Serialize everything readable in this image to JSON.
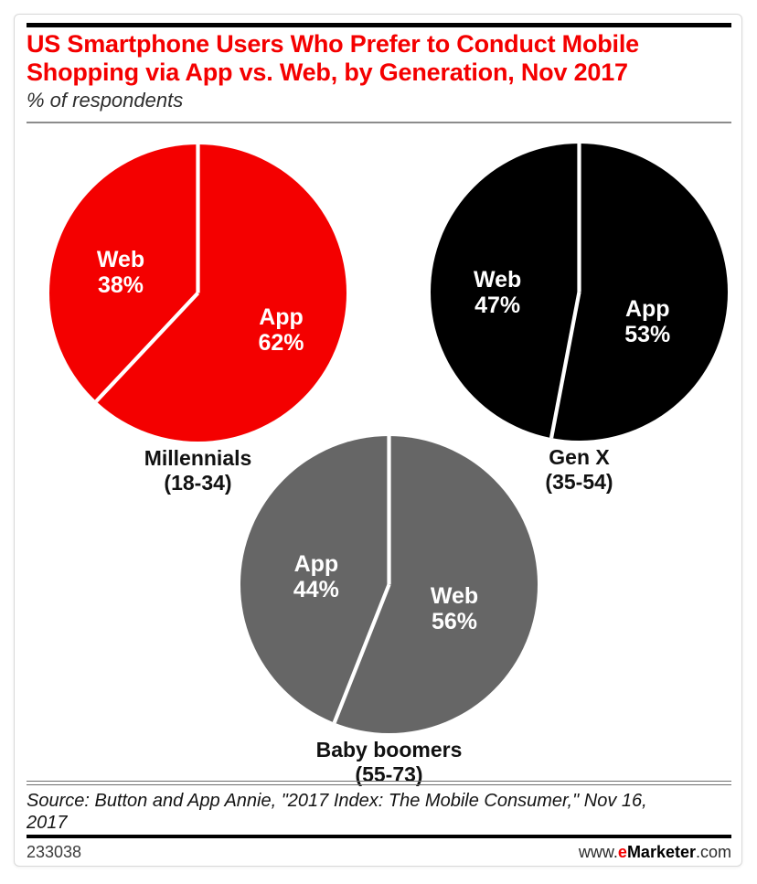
{
  "header": {
    "title_line1": "US Smartphone Users Who Prefer to Conduct Mobile",
    "title_line2": "Shopping via App vs. Web, by Generation, Nov 2017",
    "subtitle": "% of respondents",
    "title_color": "#f40000"
  },
  "chart_data": {
    "type": "pie",
    "title": "US Smartphone Users Who Prefer to Conduct Mobile Shopping via App vs. Web, by Generation, Nov 2017",
    "subtitle": "% of respondents",
    "unit": "% of respondents",
    "start_angle_deg": 0,
    "direction": "clockwise",
    "slice_label_color": "#ffffff",
    "divider_color": "#ffffff",
    "pies": [
      {
        "group": "Millennials",
        "age_range": "(18-34)",
        "color": "#f40000",
        "slices": [
          {
            "label": "App",
            "value": 62,
            "pct": "62%",
            "position": "right"
          },
          {
            "label": "Web",
            "value": 38,
            "pct": "38%",
            "position": "left"
          }
        ]
      },
      {
        "group": "Gen X",
        "age_range": "(35-54)",
        "color": "#000000",
        "slices": [
          {
            "label": "App",
            "value": 53,
            "pct": "53%",
            "position": "right"
          },
          {
            "label": "Web",
            "value": 47,
            "pct": "47%",
            "position": "left"
          }
        ]
      },
      {
        "group": "Baby boomers",
        "age_range": "(55-73)",
        "color": "#666666",
        "slices": [
          {
            "label": "Web",
            "value": 56,
            "pct": "56%",
            "position": "right"
          },
          {
            "label": "App",
            "value": 44,
            "pct": "44%",
            "position": "left"
          }
        ]
      }
    ]
  },
  "footer": {
    "source_line1": "Source: Button and App Annie, \"2017 Index: The Mobile Consumer,\" Nov 16,",
    "source_line2": "2017",
    "chart_id": "233038",
    "brand": {
      "www": "www.",
      "e": "e",
      "marketer": "Marketer",
      "com": ".com"
    }
  }
}
